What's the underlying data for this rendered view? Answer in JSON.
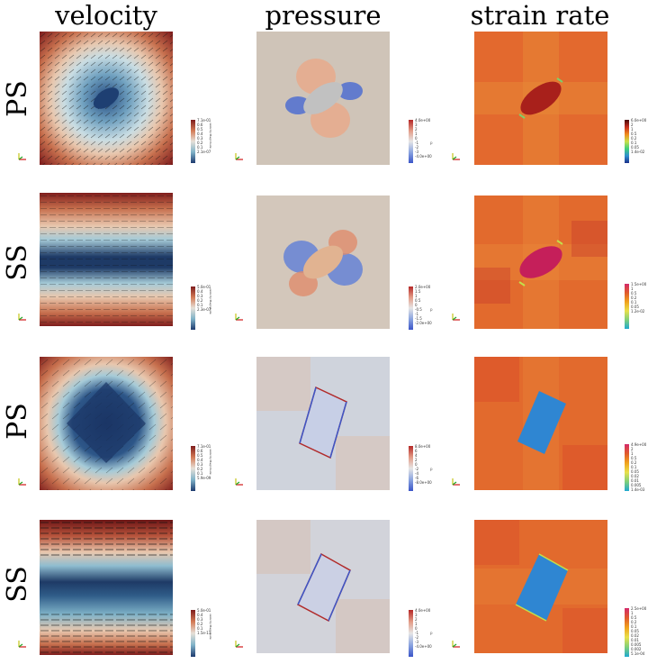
{
  "columns": [
    "velocity",
    "pressure",
    "strain rate"
  ],
  "rows": [
    {
      "label": "PS",
      "velocity_bar": {
        "title": "velocity Magnitude",
        "max": "7.1e-01",
        "ticks": [
          "0.6",
          "0.5",
          "0.4",
          "0.3",
          "0.2",
          "0.1"
        ],
        "min": "2.1e-07"
      },
      "pressure_bar": {
        "title": "p",
        "max": "4.0e+00",
        "ticks": [
          "3",
          "2",
          "1",
          "0",
          "-1",
          "-2",
          "-3"
        ],
        "min": "-4.0e+00"
      },
      "strain_bar": {
        "title": "strain_rate",
        "max": "6.0e+00",
        "ticks": [
          "2",
          "1",
          "0.5",
          "0.2",
          "0.1",
          "0.05"
        ],
        "min": "1.4e-02"
      }
    },
    {
      "label": "SS",
      "velocity_bar": {
        "title": "velocity Magnitude",
        "max": "5.0e-01",
        "ticks": [
          "0.4",
          "0.3",
          "0.2",
          "0.1"
        ],
        "min": "2.3e-07"
      },
      "pressure_bar": {
        "title": "p",
        "max": "2.0e+00",
        "ticks": [
          "1.5",
          "1",
          "0.5",
          "0",
          "-0.5",
          "-1",
          "-1.5"
        ],
        "min": "-2.0e+00"
      },
      "strain_bar": {
        "title": "strain_rate",
        "max": "1.5e+00",
        "ticks": [
          "1",
          "0.5",
          "0.2",
          "0.1",
          "0.05"
        ],
        "min": "1.2e-02"
      }
    },
    {
      "label": "PS",
      "velocity_bar": {
        "title": "velocity Magnitude",
        "max": "7.1e-01",
        "ticks": [
          "0.6",
          "0.5",
          "0.4",
          "0.3",
          "0.2",
          "0.1"
        ],
        "min": "5.9e-09"
      },
      "pressure_bar": {
        "title": "p",
        "max": "8.0e+00",
        "ticks": [
          "6",
          "4",
          "2",
          "0",
          "-2",
          "-4",
          "-6"
        ],
        "min": "-8.0e+00"
      },
      "strain_bar": {
        "title": "strain_rate",
        "max": "4.9e+00",
        "ticks": [
          "2",
          "1",
          "0.5",
          "0.2",
          "0.1",
          "0.05",
          "0.02",
          "0.01",
          "0.005"
        ],
        "min": "1.4e-03"
      }
    },
    {
      "label": "SS",
      "velocity_bar": {
        "title": "velocity Magnitude",
        "max": "5.0e-01",
        "ticks": [
          "0.4",
          "0.3",
          "0.2",
          "0.1"
        ],
        "min": "1.5e-11"
      },
      "pressure_bar": {
        "title": "p",
        "max": "4.0e+00",
        "ticks": [
          "3",
          "2",
          "1",
          "0",
          "-1",
          "-2",
          "-3"
        ],
        "min": "-4.0e+00"
      },
      "strain_bar": {
        "title": "strain_rate",
        "max": "2.5e+00",
        "ticks": [
          "1",
          "0.5",
          "0.2",
          "0.1",
          "0.05",
          "0.02",
          "0.01",
          "0.005",
          "0.002"
        ],
        "min": "5.1e-04"
      }
    }
  ],
  "colors": {
    "diverging_low": "#1d3a6e",
    "diverging_mid": "#dcdcdc",
    "diverging_high": "#8a1a1a",
    "strain_high": "#d42a6a",
    "strain_mid_orange": "#e2642b",
    "strain_low": "#1f8ed0"
  }
}
